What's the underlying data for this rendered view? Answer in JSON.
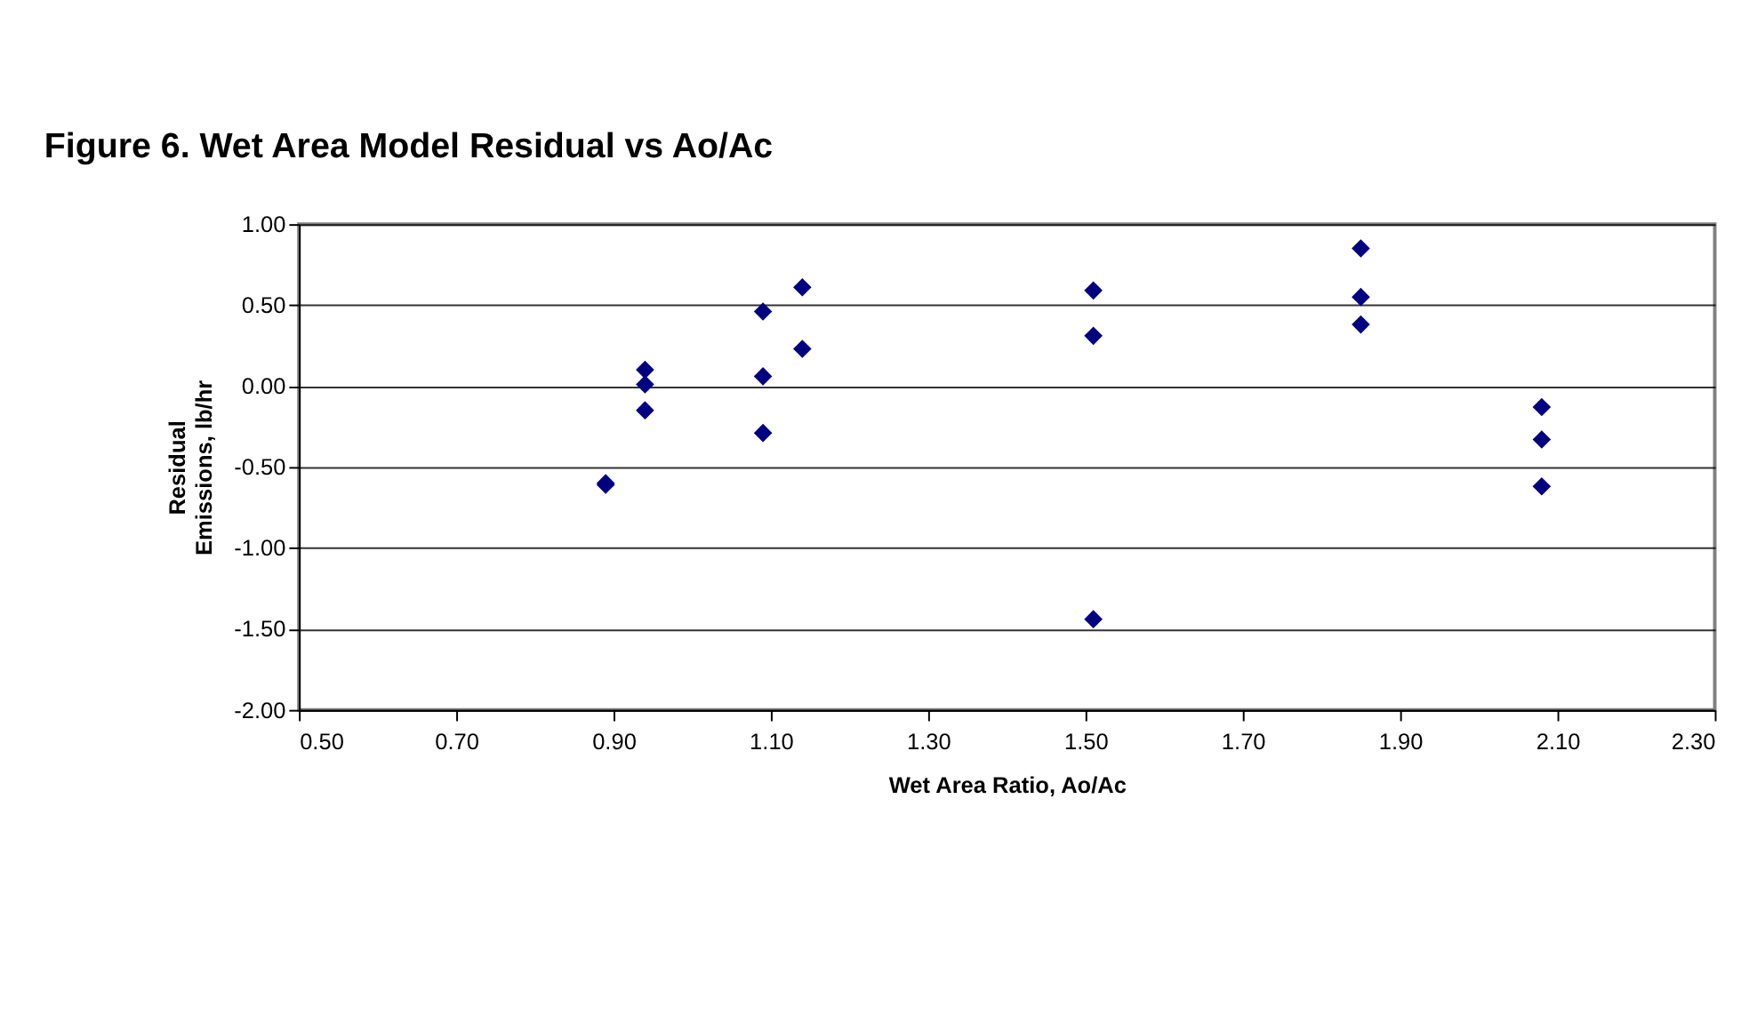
{
  "chart_data": {
    "type": "scatter",
    "title": "Figure 6. Wet Area Model Residual vs Ao/Ac",
    "xlabel": "Wet Area Ratio, Ao/Ac",
    "ylabel": "Residual Emissions, lb/hr",
    "x": [
      0.89,
      0.89,
      0.94,
      0.94,
      0.94,
      1.09,
      1.09,
      1.09,
      1.14,
      1.14,
      1.51,
      1.51,
      1.51,
      1.85,
      1.85,
      1.85,
      2.08,
      2.08,
      2.08
    ],
    "series": [
      {
        "color": "#000080",
        "values": [
          -0.6,
          -0.61,
          0.1,
          0.01,
          -0.15,
          0.46,
          0.06,
          -0.29,
          0.61,
          0.23,
          0.59,
          0.31,
          -1.44,
          0.85,
          0.55,
          0.38,
          -0.13,
          -0.33,
          -0.62
        ]
      }
    ],
    "xlim": [
      0.5,
      2.3
    ],
    "xticks": [
      {
        "value": 0.5,
        "label": "0.50"
      },
      {
        "value": 0.7,
        "label": "0.70"
      },
      {
        "value": 0.9,
        "label": "0.90"
      },
      {
        "value": 1.1,
        "label": "1.10"
      },
      {
        "value": 1.3,
        "label": "1.30"
      },
      {
        "value": 1.5,
        "label": "1.50"
      },
      {
        "value": 1.7,
        "label": "1.70"
      },
      {
        "value": 1.9,
        "label": "1.90"
      },
      {
        "value": 2.1,
        "label": "2.10"
      },
      {
        "value": 2.3,
        "label": "2.30"
      }
    ],
    "ylim": [
      -2.0,
      1.0
    ],
    "yticks": [
      {
        "value": -2.0,
        "label": "-2.00"
      },
      {
        "value": -1.5,
        "label": "-1.50"
      },
      {
        "value": -1.0,
        "label": "-1.00"
      },
      {
        "value": -0.5,
        "label": "-0.50"
      },
      {
        "value": 0.0,
        "label": "0.00"
      },
      {
        "value": 0.5,
        "label": "0.50"
      },
      {
        "value": 1.0,
        "label": "1.00"
      }
    ],
    "grid": "y",
    "marker": "diamond",
    "legend": false
  }
}
